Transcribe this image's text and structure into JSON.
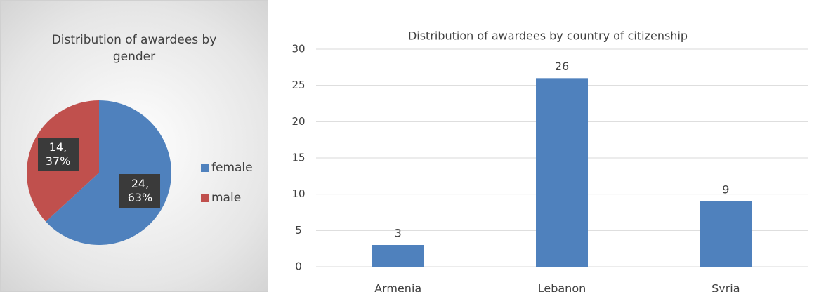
{
  "chart_data": [
    {
      "type": "pie",
      "title": "Distribution of awardees by gender",
      "categories": [
        "female",
        "male"
      ],
      "values": [
        24,
        14
      ],
      "value_labels": [
        "24, 63%",
        "14, 37%"
      ],
      "colors": [
        "#4f81bd",
        "#c0504d"
      ],
      "legend": "right"
    },
    {
      "type": "bar",
      "title": "Distribution of awardees by country of citizenship",
      "categories": [
        "Armenia",
        "Lebanon",
        "Syria"
      ],
      "values": [
        3,
        26,
        9
      ],
      "color": "#4f81bd",
      "ylim": [
        0,
        30
      ],
      "yticks": [
        0,
        5,
        10,
        15,
        20,
        25,
        30
      ],
      "grid": true
    }
  ]
}
